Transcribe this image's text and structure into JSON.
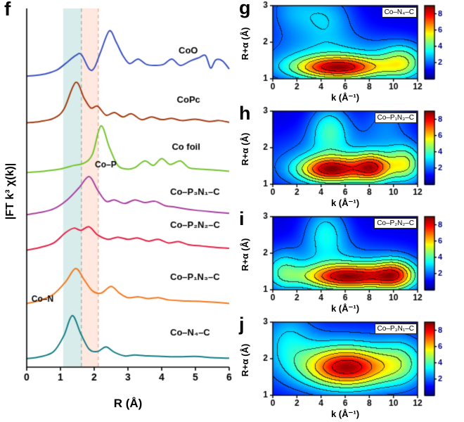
{
  "figure_name": "EXAFS and wavelet-transform figure",
  "chart_data": [
    {
      "type": "line",
      "panel": "f",
      "xlabel": "R (Å)",
      "ylabel": "|FT k³ χ(k)|",
      "xlim": [
        0,
        6
      ],
      "xticks": [
        0,
        1,
        2,
        3,
        4,
        5,
        6
      ],
      "vmax": 8.0,
      "grid": false,
      "bands": [
        {
          "from": 1.08,
          "to": 1.62,
          "color": "rgba(100,180,175,0.25)"
        },
        {
          "from": 1.62,
          "to": 2.12,
          "color": "rgba(250,150,110,0.22)"
        }
      ],
      "dashed_lines": [
        {
          "x": 1.62,
          "color": "#8fb5b0"
        },
        {
          "x": 2.12,
          "color": "#f0a080"
        }
      ],
      "annotations": [
        {
          "text": "Co–P",
          "x": 2.02,
          "v": 4.45
        },
        {
          "text": "Co–N",
          "x": 0.14,
          "v": 1.46
        }
      ],
      "series": [
        {
          "name": "CoO",
          "color": "#3b52c0",
          "offset": 6.45,
          "label_x": 4.5,
          "label_dy": 0.55,
          "points": [
            [
              0,
              0.04
            ],
            [
              0.3,
              0.06
            ],
            [
              0.6,
              0.1
            ],
            [
              0.9,
              0.18
            ],
            [
              1.15,
              0.32
            ],
            [
              1.45,
              0.5
            ],
            [
              1.62,
              0.52
            ],
            [
              1.85,
              0.2
            ],
            [
              2.0,
              0.22
            ],
            [
              2.2,
              0.6
            ],
            [
              2.45,
              1.05
            ],
            [
              2.65,
              0.8
            ],
            [
              2.85,
              0.5
            ],
            [
              3.05,
              0.32
            ],
            [
              3.3,
              0.42
            ],
            [
              3.55,
              0.3
            ],
            [
              3.8,
              0.28
            ],
            [
              4.05,
              0.3
            ],
            [
              4.3,
              0.42
            ],
            [
              4.55,
              0.28
            ],
            [
              4.85,
              0.38
            ],
            [
              5.1,
              0.45
            ],
            [
              5.3,
              0.5
            ],
            [
              5.45,
              0.22
            ],
            [
              5.6,
              0.4
            ],
            [
              5.8,
              0.38
            ],
            [
              6,
              0.2
            ]
          ]
        },
        {
          "name": "CoPc",
          "color": "#a23c12",
          "offset": 5.4,
          "label_x": 4.45,
          "label_dy": 0.5,
          "points": [
            [
              0,
              0.05
            ],
            [
              0.4,
              0.08
            ],
            [
              0.8,
              0.15
            ],
            [
              1.1,
              0.35
            ],
            [
              1.45,
              0.95
            ],
            [
              1.7,
              0.6
            ],
            [
              1.9,
              0.38
            ],
            [
              2.1,
              0.42
            ],
            [
              2.35,
              0.22
            ],
            [
              2.6,
              0.28
            ],
            [
              2.85,
              0.18
            ],
            [
              3.1,
              0.25
            ],
            [
              3.4,
              0.12
            ],
            [
              3.7,
              0.18
            ],
            [
              4.0,
              0.12
            ],
            [
              4.3,
              0.15
            ],
            [
              4.6,
              0.1
            ],
            [
              5.0,
              0.13
            ],
            [
              5.4,
              0.08
            ],
            [
              5.7,
              0.1
            ],
            [
              6,
              0.06
            ]
          ]
        },
        {
          "name": "Co foil",
          "color": "#74c42e",
          "offset": 4.3,
          "label_x": 4.3,
          "label_dy": 0.55,
          "points": [
            [
              0,
              0.04
            ],
            [
              0.5,
              0.07
            ],
            [
              1.0,
              0.12
            ],
            [
              1.4,
              0.2
            ],
            [
              1.7,
              0.25
            ],
            [
              1.95,
              0.45
            ],
            [
              2.2,
              1.08
            ],
            [
              2.45,
              0.6
            ],
            [
              2.7,
              0.2
            ],
            [
              2.95,
              0.12
            ],
            [
              3.2,
              0.15
            ],
            [
              3.5,
              0.3
            ],
            [
              3.75,
              0.2
            ],
            [
              4.0,
              0.35
            ],
            [
              4.25,
              0.22
            ],
            [
              4.55,
              0.3
            ],
            [
              4.8,
              0.15
            ],
            [
              5.1,
              0.12
            ],
            [
              5.5,
              0.1
            ],
            [
              6,
              0.07
            ]
          ]
        },
        {
          "name": "Co–P₃N₁–C",
          "color": "#a8409e",
          "offset": 3.35,
          "label_x": 4.25,
          "label_dy": 0.5,
          "points": [
            [
              0,
              0.05
            ],
            [
              0.4,
              0.1
            ],
            [
              0.8,
              0.18
            ],
            [
              1.2,
              0.38
            ],
            [
              1.55,
              0.65
            ],
            [
              1.85,
              0.9
            ],
            [
              2.1,
              0.6
            ],
            [
              2.35,
              0.35
            ],
            [
              2.6,
              0.38
            ],
            [
              2.9,
              0.3
            ],
            [
              3.2,
              0.38
            ],
            [
              3.5,
              0.32
            ],
            [
              3.8,
              0.35
            ],
            [
              4.1,
              0.25
            ],
            [
              4.4,
              0.22
            ],
            [
              4.7,
              0.18
            ],
            [
              5.0,
              0.15
            ],
            [
              5.4,
              0.12
            ],
            [
              6,
              0.08
            ]
          ]
        },
        {
          "name": "Co–P₂N₂–C",
          "color": "#e42145",
          "offset": 2.55,
          "label_x": 4.25,
          "label_dy": 0.55,
          "points": [
            [
              0,
              0.06
            ],
            [
              0.4,
              0.12
            ],
            [
              0.8,
              0.22
            ],
            [
              1.15,
              0.45
            ],
            [
              1.4,
              0.55
            ],
            [
              1.6,
              0.5
            ],
            [
              1.85,
              0.58
            ],
            [
              2.1,
              0.4
            ],
            [
              2.4,
              0.3
            ],
            [
              2.7,
              0.35
            ],
            [
              3.0,
              0.3
            ],
            [
              3.3,
              0.33
            ],
            [
              3.6,
              0.26
            ],
            [
              3.9,
              0.3
            ],
            [
              4.2,
              0.22
            ],
            [
              4.5,
              0.25
            ],
            [
              4.8,
              0.18
            ],
            [
              5.2,
              0.15
            ],
            [
              5.6,
              0.12
            ],
            [
              6,
              0.1
            ]
          ]
        },
        {
          "name": "Co–P₁N₃–C",
          "color": "#f4791f",
          "offset": 1.35,
          "label_x": 4.25,
          "label_dy": 0.6,
          "points": [
            [
              0,
              0.07
            ],
            [
              0.4,
              0.14
            ],
            [
              0.8,
              0.28
            ],
            [
              1.15,
              0.55
            ],
            [
              1.45,
              0.85
            ],
            [
              1.7,
              0.6
            ],
            [
              1.95,
              0.35
            ],
            [
              2.2,
              0.3
            ],
            [
              2.5,
              0.45
            ],
            [
              2.75,
              0.3
            ],
            [
              3.0,
              0.2
            ],
            [
              3.3,
              0.22
            ],
            [
              3.6,
              0.18
            ],
            [
              3.9,
              0.2
            ],
            [
              4.2,
              0.15
            ],
            [
              4.6,
              0.13
            ],
            [
              5.0,
              0.12
            ],
            [
              5.5,
              0.1
            ],
            [
              6,
              0.07
            ]
          ]
        },
        {
          "name": "Co–N₄–C",
          "color": "#157d82",
          "offset": 0.15,
          "label_x": 4.25,
          "label_dy": 0.55,
          "points": [
            [
              0,
              0.04
            ],
            [
              0.4,
              0.08
            ],
            [
              0.8,
              0.2
            ],
            [
              1.1,
              0.55
            ],
            [
              1.35,
              1.0
            ],
            [
              1.6,
              0.6
            ],
            [
              1.85,
              0.25
            ],
            [
              2.1,
              0.2
            ],
            [
              2.35,
              0.3
            ],
            [
              2.6,
              0.18
            ],
            [
              2.9,
              0.1
            ],
            [
              3.2,
              0.12
            ],
            [
              3.6,
              0.1
            ],
            [
              4.0,
              0.09
            ],
            [
              4.5,
              0.08
            ],
            [
              5.0,
              0.09
            ],
            [
              5.5,
              0.06
            ],
            [
              6,
              0.05
            ]
          ]
        }
      ]
    },
    {
      "type": "heatmap",
      "panel": "g",
      "label": "Co–N₄–C",
      "xlabel": "k (Å⁻¹)",
      "ylabel": "R+α (Å)",
      "xlim": [
        0,
        12
      ],
      "ylim": [
        1,
        3
      ],
      "xticks": [
        0,
        2,
        4,
        6,
        8,
        10,
        12
      ],
      "yticks": [
        1,
        2,
        3
      ],
      "colorbar_ticks": [
        2,
        4,
        6,
        8
      ],
      "zmax": 9,
      "levels": [
        2,
        3,
        4,
        5,
        6,
        7,
        8
      ],
      "baseline": 0.8,
      "blobs": [
        {
          "k": 5.0,
          "R": 1.5,
          "sk": 4.5,
          "sR": 0.55,
          "a": 2.2
        },
        {
          "k": 5.5,
          "R": 1.3,
          "sk": 2.6,
          "sR": 0.22,
          "a": 6.0
        },
        {
          "k": 10.8,
          "R": 1.45,
          "sk": 1.3,
          "sR": 0.35,
          "a": 3.2
        },
        {
          "k": 4.5,
          "R": 2.7,
          "sk": 1.6,
          "sR": 0.5,
          "a": 1.8
        },
        {
          "k": 1.5,
          "R": 2.9,
          "sk": 1.5,
          "sR": 0.5,
          "a": 1.5
        }
      ]
    },
    {
      "type": "heatmap",
      "panel": "h",
      "label": "Co–P₁N₃–C",
      "xlabel": "k (Å⁻¹)",
      "ylabel": "R+α (Å)",
      "xlim": [
        0,
        12
      ],
      "ylim": [
        1,
        3
      ],
      "xticks": [
        0,
        2,
        4,
        6,
        8,
        10,
        12
      ],
      "yticks": [
        1,
        2,
        3
      ],
      "colorbar_ticks": [
        2,
        4,
        6,
        8
      ],
      "zmax": 9,
      "levels": [
        2,
        3,
        4,
        5,
        6,
        7,
        8
      ],
      "baseline": 0.8,
      "blobs": [
        {
          "k": 5.5,
          "R": 1.55,
          "sk": 4.5,
          "sR": 0.6,
          "a": 2.0
        },
        {
          "k": 4.8,
          "R": 1.4,
          "sk": 1.8,
          "sR": 0.25,
          "a": 6.2
        },
        {
          "k": 8.3,
          "R": 1.45,
          "sk": 1.1,
          "sR": 0.28,
          "a": 5.2
        },
        {
          "k": 11.0,
          "R": 1.55,
          "sk": 1.0,
          "sR": 0.35,
          "a": 3.5
        },
        {
          "k": 4.7,
          "R": 2.55,
          "sk": 1.2,
          "sR": 0.45,
          "a": 2.6
        },
        {
          "k": 9.5,
          "R": 2.7,
          "sk": 1.5,
          "sR": 0.5,
          "a": 1.2
        }
      ]
    },
    {
      "type": "heatmap",
      "panel": "i",
      "label": "Co–P₂N₂–C",
      "xlabel": "k (Å⁻¹)",
      "ylabel": "R+α (Å)",
      "xlim": [
        0,
        12
      ],
      "ylim": [
        1,
        3
      ],
      "xticks": [
        0,
        2,
        4,
        6,
        8,
        10,
        12
      ],
      "yticks": [
        1,
        2,
        3
      ],
      "colorbar_ticks": [
        2,
        4,
        6,
        8
      ],
      "zmax": 9,
      "levels": [
        2,
        3,
        4,
        5,
        6,
        7,
        8
      ],
      "baseline": 0.8,
      "blobs": [
        {
          "k": 6.0,
          "R": 1.5,
          "sk": 4.5,
          "sR": 0.55,
          "a": 2.0
        },
        {
          "k": 6.3,
          "R": 1.35,
          "sk": 2.6,
          "sR": 0.24,
          "a": 6.2
        },
        {
          "k": 10.2,
          "R": 1.4,
          "sk": 1.2,
          "sR": 0.3,
          "a": 4.5
        },
        {
          "k": 4.4,
          "R": 2.6,
          "sk": 1.3,
          "sR": 0.5,
          "a": 2.4
        },
        {
          "k": 0.8,
          "R": 1.5,
          "sk": 1.0,
          "sR": 0.4,
          "a": 2.0
        }
      ]
    },
    {
      "type": "heatmap",
      "panel": "j",
      "label": "Co–P₃N₁–C",
      "xlabel": "k (Å⁻¹)",
      "ylabel": "R+α (Å)",
      "xlim": [
        0,
        12
      ],
      "ylim": [
        1,
        3
      ],
      "xticks": [
        0,
        2,
        4,
        6,
        8,
        10,
        12
      ],
      "yticks": [
        1,
        2,
        3
      ],
      "colorbar_ticks": [
        2,
        4,
        6,
        8
      ],
      "zmax": 9,
      "levels": [
        2,
        3,
        4,
        5,
        6,
        7,
        8
      ],
      "baseline": 0.8,
      "blobs": [
        {
          "k": 5.5,
          "R": 1.9,
          "sk": 4.5,
          "sR": 0.7,
          "a": 2.0
        },
        {
          "k": 6.2,
          "R": 1.75,
          "sk": 2.4,
          "sR": 0.38,
          "a": 6.0
        },
        {
          "k": 10.8,
          "R": 1.9,
          "sk": 1.4,
          "sR": 0.5,
          "a": 2.2
        },
        {
          "k": 1.2,
          "R": 2.6,
          "sk": 1.5,
          "sR": 0.6,
          "a": 1.6
        }
      ]
    }
  ]
}
